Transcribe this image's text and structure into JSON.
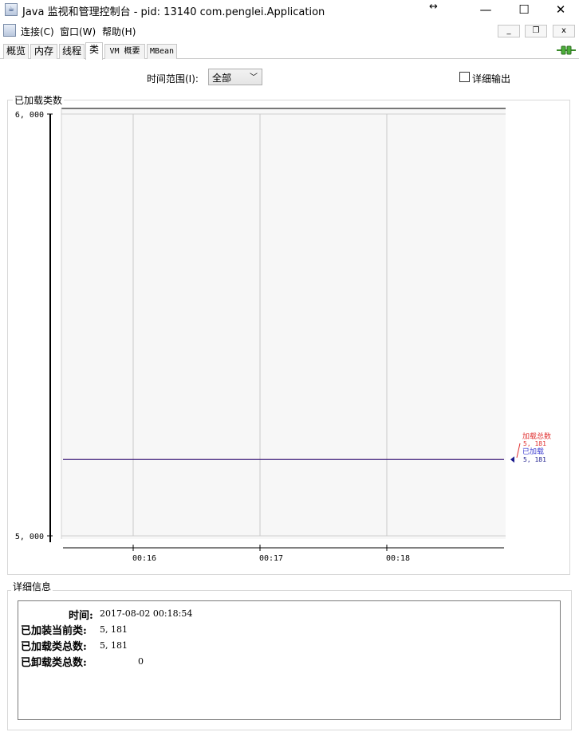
{
  "window": {
    "title": "Java 监视和管理控制台 - pid: 13140 com.penglei.Application",
    "resize_glyph": "↔",
    "minimize": "—",
    "maximize": "☐",
    "close": "✕"
  },
  "menu": {
    "items": [
      "连接(C)",
      "窗口(W)",
      "帮助(H)"
    ],
    "mdi_minimize": "_",
    "mdi_restore": "❐",
    "mdi_close": "x"
  },
  "tabs": [
    "概览",
    "内存",
    "线程",
    "类",
    "VM 概要",
    "MBean"
  ],
  "active_tab": "类",
  "controls": {
    "time_range_label": "时间范围(I):",
    "time_range_value": "全部",
    "detail_output_label": "详细输出"
  },
  "chart_panel_title": "已加载类数",
  "chart_data": {
    "type": "line",
    "x": [
      "00:16",
      "00:17",
      "00:18"
    ],
    "ylim": [
      5000,
      6000
    ],
    "y_ticks": [
      "6, 000",
      "5, 000"
    ],
    "series": [
      {
        "name": "加载总数",
        "value_label": "5, 181",
        "value": 5181,
        "color": "#e03030"
      },
      {
        "name": "已加载",
        "value_label": "5, 181",
        "value": 5181,
        "color": "#1a1a8c"
      }
    ],
    "grid": true
  },
  "details": {
    "title": "详细信息",
    "rows": [
      {
        "label": "时间:",
        "value": "2017-08-02 00:18:54"
      },
      {
        "label": "已加装当前类:",
        "value": "5, 181"
      },
      {
        "label": "已加载类总数:",
        "value": "5, 181"
      },
      {
        "label": "已卸载类总数:",
        "value": "0"
      }
    ]
  }
}
